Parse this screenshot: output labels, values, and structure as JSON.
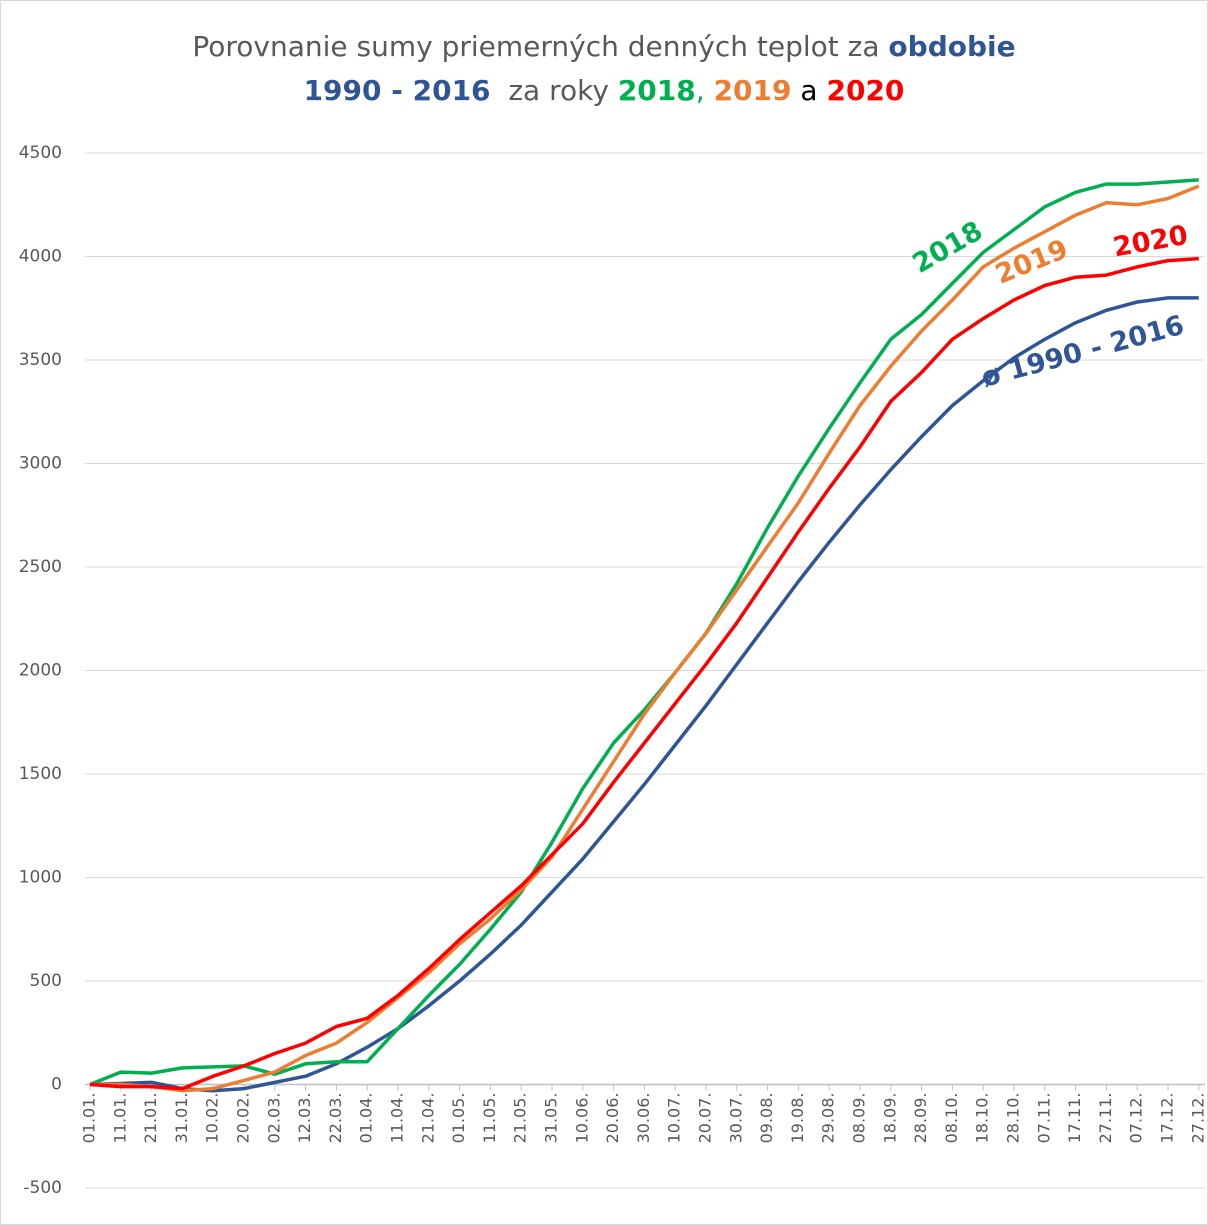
{
  "chart_data": {
    "type": "line",
    "title": [
      [
        {
          "text": "Porovnanie sumy priemerných denných teplot za ",
          "color": "#595959",
          "bold": false
        },
        {
          "text": "obdobie",
          "color": "#2f5597",
          "bold": true
        }
      ],
      [
        {
          "text": "1990 - 2016",
          "color": "#2f5597",
          "bold": true
        },
        {
          "text": "  za roky ",
          "color": "#595959",
          "bold": false
        },
        {
          "text": "2018",
          "color": "#00b050",
          "bold": true
        },
        {
          "text": ", ",
          "color": "#00b050",
          "bold": false
        },
        {
          "text": "2019",
          "color": "#ed7d31",
          "bold": true
        },
        {
          "text": " a ",
          "color": "#000000",
          "bold": false
        },
        {
          "text": "2020",
          "color": "#ff0000",
          "bold": true
        }
      ]
    ],
    "categories": [
      "01.01.",
      "11.01.",
      "21.01.",
      "31.01.",
      "10.02.",
      "20.02.",
      "02.03.",
      "12.03.",
      "22.03.",
      "01.04.",
      "11.04.",
      "21.04.",
      "01.05.",
      "11.05.",
      "21.05.",
      "31.05.",
      "10.06.",
      "20.06.",
      "30.06.",
      "10.07.",
      "20.07.",
      "30.07.",
      "09.08.",
      "19.08.",
      "29.08.",
      "08.09.",
      "18.09.",
      "28.09.",
      "08.10.",
      "18.10.",
      "28.10.",
      "07.11.",
      "17.11.",
      "27.11.",
      "07.12.",
      "17.12.",
      "27.12."
    ],
    "series": [
      {
        "name": "ø 1990 - 2016",
        "color": "#2f5597",
        "values": [
          0,
          5,
          10,
          -20,
          -30,
          -20,
          10,
          40,
          100,
          180,
          270,
          380,
          500,
          630,
          770,
          930,
          1090,
          1270,
          1450,
          1640,
          1830,
          2030,
          2230,
          2430,
          2620,
          2800,
          2970,
          3130,
          3280,
          3400,
          3510,
          3600,
          3680,
          3740,
          3780,
          3800,
          3800
        ]
      },
      {
        "name": "2018",
        "color": "#00b050",
        "values": [
          0,
          60,
          55,
          80,
          85,
          90,
          50,
          100,
          110,
          110,
          270,
          430,
          580,
          750,
          930,
          1170,
          1430,
          1650,
          1810,
          1990,
          2180,
          2420,
          2690,
          2940,
          3170,
          3390,
          3600,
          3720,
          3870,
          4020,
          4130,
          4240,
          4310,
          4350,
          4350,
          4360,
          4370
        ]
      },
      {
        "name": "2019",
        "color": "#ed7d31",
        "values": [
          0,
          0,
          -10,
          -30,
          -20,
          20,
          60,
          140,
          200,
          300,
          420,
          540,
          680,
          800,
          940,
          1100,
          1330,
          1560,
          1790,
          1990,
          2180,
          2390,
          2600,
          2810,
          3050,
          3280,
          3470,
          3640,
          3790,
          3950,
          4040,
          4120,
          4200,
          4260,
          4250,
          4280,
          4340
        ]
      },
      {
        "name": "2020",
        "color": "#ff0000",
        "values": [
          0,
          -10,
          -10,
          -20,
          40,
          90,
          150,
          200,
          280,
          320,
          430,
          560,
          700,
          830,
          960,
          1110,
          1260,
          1460,
          1650,
          1840,
          2030,
          2230,
          2450,
          2670,
          2880,
          3080,
          3300,
          3440,
          3600,
          3700,
          3790,
          3860,
          3900,
          3910,
          3950,
          3980,
          3990
        ]
      }
    ],
    "ylim": [
      -500,
      4500
    ],
    "yticks": [
      -500,
      0,
      500,
      1000,
      1500,
      2000,
      2500,
      3000,
      3500,
      4000,
      4500
    ],
    "grid": true
  }
}
